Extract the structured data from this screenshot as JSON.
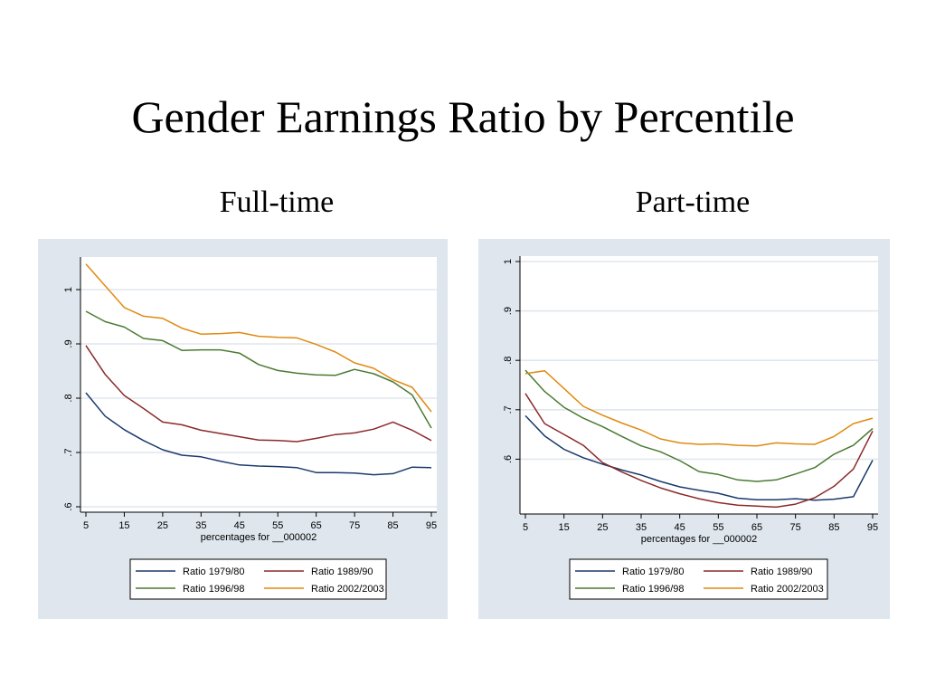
{
  "slide": {
    "title": "Gender Earnings Ratio by Percentile",
    "left_subtitle": "Full-time",
    "right_subtitle": "Part-time"
  },
  "chart_data": [
    {
      "type": "line",
      "title": "Full-time",
      "xlabel": "percentages for __000002",
      "ylabel": "",
      "xlim": [
        5,
        95
      ],
      "ylim": [
        0.6,
        1.05
      ],
      "x_ticks": [
        5,
        15,
        25,
        35,
        45,
        55,
        65,
        75,
        85,
        95
      ],
      "y_ticks": [
        0.6,
        0.7,
        0.8,
        0.9,
        1.0
      ],
      "y_tick_labels": [
        ".6",
        ".7",
        ".8",
        ".9",
        "1"
      ],
      "grid": true,
      "legend_position": "bottom",
      "x": [
        5,
        10,
        15,
        20,
        25,
        30,
        35,
        40,
        45,
        50,
        55,
        60,
        65,
        70,
        75,
        80,
        85,
        90,
        95
      ],
      "series": [
        {
          "name": "Ratio 1979/80",
          "color": "#1a3a6b",
          "values": [
            0.81,
            0.767,
            0.742,
            0.722,
            0.705,
            0.695,
            0.692,
            0.684,
            0.677,
            0.675,
            0.674,
            0.672,
            0.663,
            0.663,
            0.662,
            0.659,
            0.661,
            0.673,
            0.672
          ]
        },
        {
          "name": "Ratio 1989/90",
          "color": "#8b2a2a",
          "values": [
            0.897,
            0.844,
            0.805,
            0.781,
            0.756,
            0.751,
            0.741,
            0.735,
            0.729,
            0.723,
            0.722,
            0.72,
            0.726,
            0.733,
            0.736,
            0.743,
            0.756,
            0.741,
            0.722
          ]
        },
        {
          "name": "Ratio 1996/98",
          "color": "#4a7a32",
          "values": [
            0.96,
            0.941,
            0.931,
            0.91,
            0.906,
            0.888,
            0.889,
            0.889,
            0.883,
            0.862,
            0.851,
            0.846,
            0.843,
            0.842,
            0.853,
            0.845,
            0.83,
            0.806,
            0.745
          ]
        },
        {
          "name": "Ratio 2002/2003",
          "color": "#e08a10",
          "values": [
            1.047,
            1.007,
            0.967,
            0.951,
            0.947,
            0.929,
            0.918,
            0.919,
            0.921,
            0.914,
            0.912,
            0.911,
            0.899,
            0.885,
            0.865,
            0.855,
            0.834,
            0.82,
            0.775
          ]
        }
      ]
    },
    {
      "type": "line",
      "title": "Part-time",
      "xlabel": "percentages for __000002",
      "ylabel": "",
      "xlim": [
        5,
        95
      ],
      "ylim": [
        0.5,
        1.0
      ],
      "x_ticks": [
        5,
        15,
        25,
        35,
        45,
        55,
        65,
        75,
        85,
        95
      ],
      "y_ticks": [
        0.6,
        0.7,
        0.8,
        0.9,
        1.0
      ],
      "y_tick_labels": [
        ".6",
        ".7",
        ".8",
        ".9",
        "1"
      ],
      "grid": true,
      "legend_position": "bottom",
      "x": [
        5,
        10,
        15,
        20,
        25,
        30,
        35,
        40,
        45,
        50,
        55,
        60,
        65,
        70,
        75,
        80,
        85,
        90,
        95
      ],
      "series": [
        {
          "name": "Ratio 1979/80",
          "color": "#1a3a6b",
          "values": [
            0.688,
            0.647,
            0.62,
            0.603,
            0.59,
            0.578,
            0.568,
            0.555,
            0.544,
            0.537,
            0.531,
            0.521,
            0.518,
            0.518,
            0.52,
            0.517,
            0.519,
            0.524,
            0.598
          ]
        },
        {
          "name": "Ratio 1989/90",
          "color": "#8b2a2a",
          "values": [
            0.733,
            0.672,
            0.65,
            0.628,
            0.593,
            0.574,
            0.557,
            0.542,
            0.53,
            0.52,
            0.512,
            0.507,
            0.505,
            0.503,
            0.509,
            0.522,
            0.545,
            0.58,
            0.657
          ]
        },
        {
          "name": "Ratio 1996/98",
          "color": "#4a7a32",
          "values": [
            0.78,
            0.737,
            0.705,
            0.683,
            0.666,
            0.646,
            0.627,
            0.615,
            0.597,
            0.575,
            0.569,
            0.558,
            0.555,
            0.558,
            0.57,
            0.583,
            0.61,
            0.628,
            0.662
          ]
        },
        {
          "name": "Ratio 2002/2003",
          "color": "#e08a10",
          "values": [
            0.773,
            0.779,
            0.743,
            0.707,
            0.689,
            0.673,
            0.659,
            0.641,
            0.633,
            0.63,
            0.631,
            0.628,
            0.627,
            0.633,
            0.631,
            0.63,
            0.646,
            0.672,
            0.683
          ]
        }
      ]
    }
  ]
}
